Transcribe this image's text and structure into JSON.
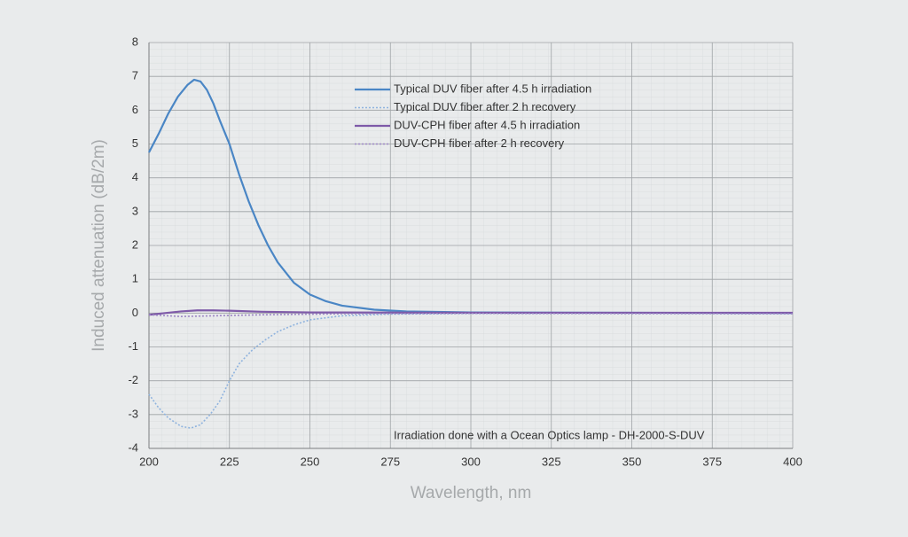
{
  "chart_data": {
    "type": "line",
    "annotation": "Irradiation done with a Ocean Optics lamp - DH-2000-S-DUV",
    "xlabel": "Wavelength, nm",
    "ylabel": "Induced attenuation (dB/2m)",
    "xlim": [
      200,
      400
    ],
    "xticks": [
      200,
      225,
      250,
      275,
      300,
      325,
      350,
      375,
      400
    ],
    "ylim": [
      -4,
      8
    ],
    "yticks": [
      -4,
      -3,
      -2,
      -1,
      0,
      1,
      2,
      3,
      4,
      5,
      6,
      7,
      8
    ],
    "grid": true,
    "series": [
      {
        "name": "Typical DUV fiber after 4.5 h irradiation",
        "color": "#4a86c5",
        "style": "solid",
        "x": [
          200,
          203,
          206,
          209,
          212,
          214,
          216,
          218,
          220,
          222,
          225,
          228,
          231,
          234,
          237,
          240,
          245,
          250,
          255,
          260,
          270,
          280,
          300,
          350,
          400
        ],
        "values": [
          4.75,
          5.3,
          5.9,
          6.4,
          6.75,
          6.9,
          6.85,
          6.6,
          6.2,
          5.7,
          5.0,
          4.1,
          3.3,
          2.6,
          2.0,
          1.5,
          0.9,
          0.55,
          0.35,
          0.22,
          0.1,
          0.05,
          0.02,
          0.01,
          0.0
        ]
      },
      {
        "name": "Typical DUV fiber after 2 h recovery",
        "color": "#8fb3de",
        "style": "dotted",
        "x": [
          200,
          203,
          206,
          210,
          213,
          216,
          219,
          222,
          225,
          228,
          232,
          236,
          240,
          245,
          250,
          260,
          275,
          300,
          400
        ],
        "values": [
          -2.4,
          -2.8,
          -3.1,
          -3.35,
          -3.4,
          -3.3,
          -3.0,
          -2.6,
          -2.0,
          -1.5,
          -1.1,
          -0.8,
          -0.55,
          -0.35,
          -0.2,
          -0.08,
          -0.03,
          -0.01,
          0.0
        ]
      },
      {
        "name": "DUV-CPH fiber after 4.5 h irradiation",
        "color": "#7e5aa8",
        "style": "solid",
        "x": [
          200,
          205,
          210,
          215,
          220,
          225,
          235,
          250,
          300,
          400
        ],
        "values": [
          -0.05,
          0.0,
          0.05,
          0.08,
          0.08,
          0.07,
          0.04,
          0.02,
          0.01,
          0.01
        ]
      },
      {
        "name": "DUV-CPH fiber after 2 h recovery",
        "color": "#9b85c4",
        "style": "dotted",
        "x": [
          200,
          210,
          220,
          235,
          260,
          300,
          400
        ],
        "values": [
          -0.05,
          -0.1,
          -0.08,
          -0.05,
          -0.02,
          -0.01,
          -0.02
        ]
      }
    ]
  }
}
